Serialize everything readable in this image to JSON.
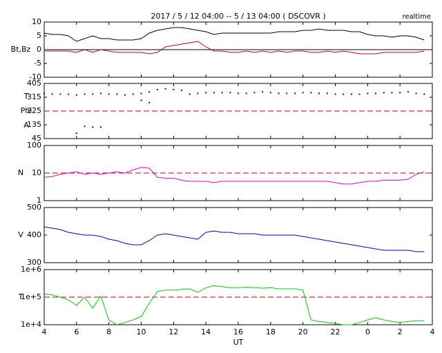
{
  "chart_data": {
    "type": "multi-panel",
    "title": "2017 / 5 / 12  04:00 -- 5 / 13  04:00 ( DSCOVR )",
    "subtitle": "realtime",
    "xlabel": "UT",
    "xlim": [
      4,
      28
    ],
    "xticks": [
      4,
      6,
      8,
      10,
      12,
      14,
      16,
      18,
      20,
      22,
      {
        "value": 24,
        "label": "0"
      },
      {
        "value": 26,
        "label": "2"
      },
      {
        "value": 28,
        "label": "4"
      }
    ],
    "x": [
      4,
      4.5,
      5,
      5.5,
      6,
      6.5,
      7,
      7.5,
      8,
      8.5,
      9,
      9.5,
      10,
      10.5,
      11,
      11.5,
      12,
      12.5,
      13,
      13.5,
      14,
      14.5,
      15,
      15.5,
      16,
      16.5,
      17,
      17.5,
      18,
      18.5,
      19,
      19.5,
      20,
      20.5,
      21,
      21.5,
      22,
      22.5,
      23,
      23.5,
      24,
      24.5,
      25,
      25.5,
      26,
      26.5,
      27,
      27.5
    ],
    "panels": [
      {
        "type": "line",
        "ylabel": [
          "Bt,Bz"
        ],
        "ylim": [
          -10,
          10
        ],
        "yticks": [
          10,
          5,
          0,
          -5,
          -10
        ],
        "log": false,
        "hline": {
          "value": 0,
          "color": "#000000",
          "dashed": false
        },
        "series": [
          {
            "color": "#000000",
            "values": [
              6,
              5.5,
              5.5,
              5,
              3,
              4,
              5,
              4,
              4,
              3.5,
              3.5,
              3.5,
              4,
              6,
              7,
              7.5,
              8,
              8,
              7.5,
              7,
              6.5,
              5.5,
              6,
              6,
              6,
              6,
              6,
              6,
              6,
              6.5,
              6.5,
              6.5,
              7,
              7,
              7.5,
              7,
              7,
              7,
              6.5,
              6.5,
              5.5,
              5,
              5,
              4.5,
              5,
              5,
              4.5,
              3.5
            ]
          },
          {
            "color": "#d00000",
            "values": [
              -0.5,
              -0.5,
              -0.5,
              -0.5,
              -1,
              0,
              -1,
              0,
              -0.5,
              -1,
              -1,
              -1,
              -1,
              -1.5,
              -1,
              1,
              1.5,
              2,
              2.5,
              3,
              1,
              -0.5,
              -0.5,
              -1,
              -1,
              -0.5,
              -1,
              -0.5,
              -1,
              -0.5,
              -1,
              -0.5,
              -0.5,
              -1,
              -1,
              -0.5,
              -1,
              -0.5,
              -1,
              -1.5,
              -1.5,
              -1.5,
              -1,
              -1,
              -1,
              -1,
              -1,
              -0.5
            ]
          }
        ]
      },
      {
        "type": "scatter",
        "ylabel": [
          "T",
          "Phi",
          "A"
        ],
        "ylim": [
          45,
          405
        ],
        "yticks": [
          405,
          315,
          225,
          135,
          45
        ],
        "log": false,
        "hline": {
          "value": 225,
          "color": "#c00000",
          "dashed": true
        },
        "series": [
          {
            "color": "#0000c0",
            "values": [
              340,
              335,
              335,
              335,
              330,
              335,
              335,
              340,
              335,
              335,
              330,
              335,
              340,
              350,
              365,
              370,
              365,
              360,
              335,
              340,
              345,
              345,
              345,
              345,
              340,
              340,
              345,
              350,
              345,
              340,
              340,
              340,
              345,
              345,
              340,
              340,
              335,
              335,
              335,
              335,
              340,
              340,
              345,
              345,
              345,
              350,
              340,
              335
            ]
          },
          {
            "color": "#0000c0",
            "values": [
              null,
              null,
              null,
              null,
              80,
              125,
              120,
              120,
              null,
              null,
              null,
              null,
              295,
              280,
              null,
              null,
              null,
              null,
              null,
              null,
              null,
              null,
              null,
              null,
              null,
              null,
              null,
              null,
              null,
              null,
              null,
              null,
              null,
              null,
              null,
              null,
              null,
              null,
              null,
              null,
              null,
              null,
              null,
              null,
              null,
              null,
              null,
              null
            ]
          }
        ]
      },
      {
        "type": "line",
        "ylabel": [
          "N"
        ],
        "ylim": [
          1,
          100
        ],
        "yticks": [
          100,
          10,
          1
        ],
        "log": true,
        "hline": {
          "value": 10,
          "color": "#c00000",
          "dashed": true
        },
        "series": [
          {
            "color": "#e000e0",
            "values": [
              7,
              7.5,
              9,
              10,
              11,
              9,
              10,
              9,
              10,
              11,
              10,
              13,
              16,
              15,
              7,
              6.5,
              6.5,
              5.5,
              5,
              5,
              5,
              4.5,
              5,
              5,
              5,
              5,
              5,
              5,
              5,
              5,
              5,
              5,
              5,
              5,
              5,
              5,
              4.5,
              4,
              4,
              4.5,
              5,
              5,
              5.5,
              5.5,
              5.5,
              6,
              9,
              11
            ]
          }
        ]
      },
      {
        "type": "line",
        "ylabel": [
          "V"
        ],
        "ylim": [
          300,
          500
        ],
        "yticks": [
          500,
          400,
          300
        ],
        "log": false,
        "series": [
          {
            "color": "#0000c0",
            "values": [
              430,
              425,
              420,
              410,
              405,
              400,
              400,
              395,
              385,
              380,
              370,
              365,
              365,
              380,
              400,
              405,
              400,
              395,
              390,
              385,
              410,
              415,
              410,
              410,
              405,
              405,
              405,
              400,
              400,
              400,
              400,
              400,
              395,
              390,
              385,
              380,
              375,
              370,
              365,
              360,
              355,
              350,
              345,
              345,
              345,
              345,
              340,
              340
            ]
          }
        ]
      },
      {
        "type": "line",
        "ylabel": [
          "T"
        ],
        "ylim": [
          10000,
          1000000
        ],
        "yticks": [
          {
            "value": 1000000,
            "label": "1e+6"
          },
          {
            "value": 100000,
            "label": "1e+5"
          },
          {
            "value": 10000,
            "label": "1e+4"
          }
        ],
        "log": true,
        "hline": {
          "value": 100000,
          "color": "#c00000",
          "dashed": true
        },
        "series": [
          {
            "color": "#00d000",
            "values": [
              130000,
              120000,
              100000,
              80000,
              50000,
              100000,
              40000,
              110000,
              15000,
              10000,
              12000,
              15000,
              20000,
              60000,
              160000,
              180000,
              180000,
              190000,
              200000,
              150000,
              220000,
              260000,
              240000,
              220000,
              220000,
              230000,
              220000,
              210000,
              220000,
              200000,
              200000,
              200000,
              180000,
              15000,
              13000,
              12000,
              11000,
              10000,
              10000,
              12000,
              15000,
              18000,
              15000,
              13000,
              12000,
              13000,
              14000,
              14000
            ]
          }
        ]
      }
    ]
  }
}
